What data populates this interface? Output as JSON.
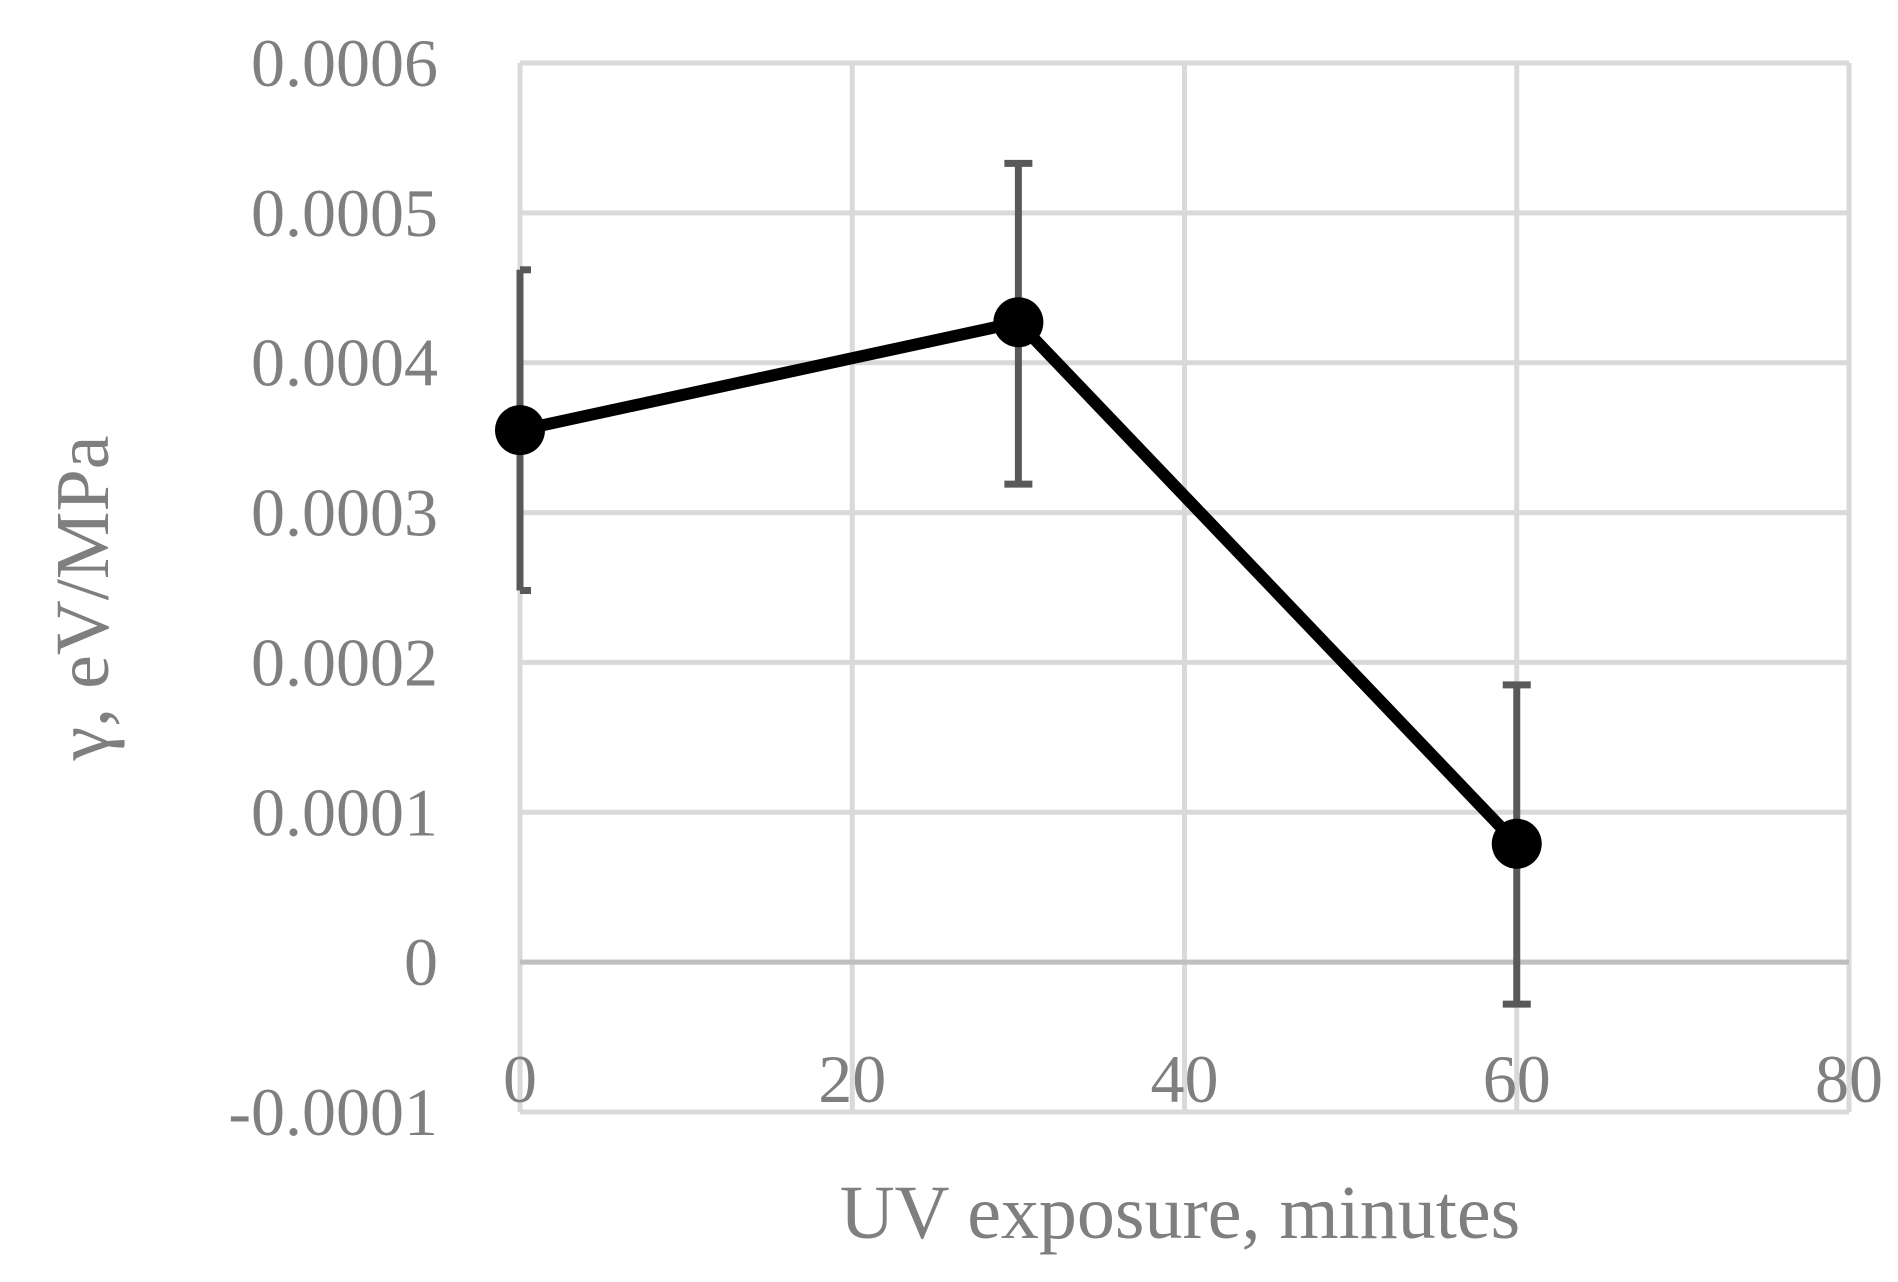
{
  "chart_data": {
    "type": "line",
    "title": "",
    "xlabel": "UV exposure, minutes",
    "ylabel": "γ, eV/MPa",
    "xlim": [
      0,
      80
    ],
    "ylim": [
      -0.0001,
      0.0006
    ],
    "x_ticks": [
      0,
      20,
      40,
      60,
      80
    ],
    "x_tick_labels": [
      "0",
      "20",
      "40",
      "60",
      "80"
    ],
    "y_ticks": [
      -0.0001,
      0,
      0.0001,
      0.0002,
      0.0003,
      0.0004,
      0.0005,
      0.0006
    ],
    "y_tick_labels": [
      "-0.0001",
      "0",
      "0.0001",
      "0.0002",
      "0.0003",
      "0.0004",
      "0.0005",
      "0.0006"
    ],
    "grid": true,
    "legend": "none",
    "series": [
      {
        "x": [
          0,
          30,
          60
        ],
        "y": [
          0.000355,
          0.000427,
          7.9e-05
        ],
        "error_upper": [
          0.000462,
          0.000533,
          0.000185
        ],
        "error_lower": [
          0.000248,
          0.000319,
          -2.8e-05
        ],
        "color": "#000000",
        "error_color": "#595959",
        "marker": "circle"
      }
    ],
    "colors": {
      "grid": "#d9d9d9",
      "text": "#7f7f7f",
      "line": "#000000",
      "error_bar": "#595959"
    }
  }
}
